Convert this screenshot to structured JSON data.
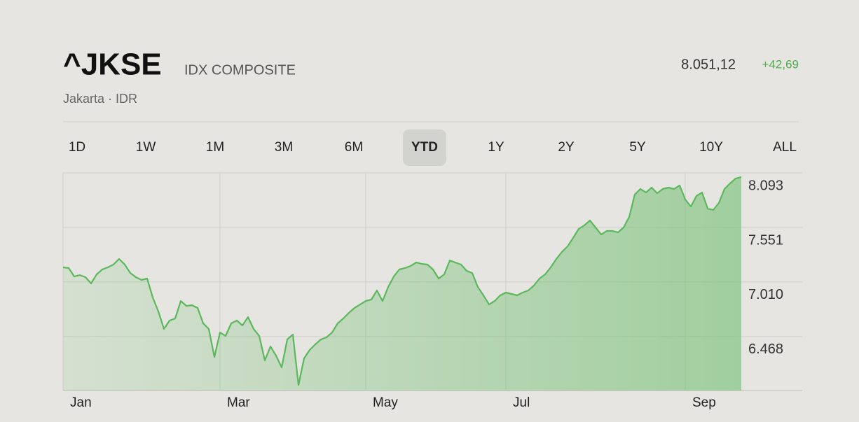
{
  "header": {
    "symbol": "^JKSE",
    "name": "IDX COMPOSITE",
    "exchange": "Jakarta · IDR",
    "price": "8.051,12",
    "change": "+42,69"
  },
  "range_buttons": [
    "1D",
    "1W",
    "1M",
    "3M",
    "6M",
    "YTD",
    "1Y",
    "2Y",
    "5Y",
    "10Y",
    "ALL"
  ],
  "selected_range": 5,
  "chart_data": {
    "type": "line",
    "color": "#5cb85c",
    "grid": true,
    "categories": [
      "Jan",
      null,
      null,
      null,
      null,
      null,
      null,
      null,
      null,
      null,
      null,
      null,
      null,
      null,
      null,
      null,
      null,
      null,
      null,
      null,
      null,
      null,
      null,
      null,
      null,
      null,
      null,
      null,
      "Mar",
      null,
      null,
      null,
      null,
      null,
      null,
      null,
      null,
      null,
      null,
      null,
      null,
      null,
      null,
      null,
      null,
      null,
      null,
      null,
      null,
      null,
      null,
      null,
      null,
      null,
      "May",
      null,
      null,
      null,
      null,
      null,
      null,
      null,
      null,
      null,
      null,
      null,
      null,
      null,
      null,
      null,
      null,
      null,
      null,
      null,
      null,
      null,
      null,
      null,
      null,
      "Jul",
      null,
      null,
      null,
      null,
      null,
      null,
      null,
      null,
      null,
      null,
      null,
      null,
      null,
      null,
      null,
      null,
      null,
      null,
      null,
      null,
      null,
      null,
      null,
      null,
      null,
      null,
      null,
      null,
      null,
      null,
      null,
      "Sep",
      null,
      null,
      null,
      null,
      null,
      null,
      null,
      null,
      null,
      null
    ],
    "values": [
      7155,
      7148,
      7064,
      7078,
      7057,
      6995,
      7085,
      7134,
      7155,
      7183,
      7238,
      7183,
      7099,
      7057,
      7030,
      7044,
      6856,
      6717,
      6543,
      6627,
      6647,
      6821,
      6772,
      6779,
      6752,
      6599,
      6543,
      6265,
      6508,
      6474,
      6599,
      6627,
      6578,
      6661,
      6543,
      6474,
      6230,
      6369,
      6279,
      6161,
      6439,
      6488,
      5987,
      6251,
      6335,
      6390,
      6439,
      6460,
      6508,
      6599,
      6647,
      6703,
      6752,
      6786,
      6821,
      6835,
      6925,
      6821,
      6960,
      7064,
      7134,
      7148,
      7169,
      7203,
      7189,
      7183,
      7134,
      7044,
      7085,
      7224,
      7203,
      7183,
      7120,
      7099,
      6960,
      6877,
      6786,
      6821,
      6877,
      6905,
      6891,
      6877,
      6905,
      6925,
      6974,
      7044,
      7085,
      7155,
      7238,
      7308,
      7363,
      7447,
      7537,
      7572,
      7620,
      7551,
      7481,
      7516,
      7516,
      7502,
      7551,
      7655,
      7878,
      7933,
      7898,
      7947,
      7891,
      7933,
      7947,
      7933,
      7968,
      7829,
      7759,
      7864,
      7898,
      7739,
      7725,
      7794,
      7933,
      7989,
      8037,
      8051
    ],
    "ylim": [
      5932,
      8093
    ],
    "yticks": [
      {
        "value": 6468,
        "label": "6.468"
      },
      {
        "value": 7010,
        "label": "7.010"
      },
      {
        "value": 7551,
        "label": "7.551"
      },
      {
        "value": 8093,
        "label": "8.093"
      }
    ]
  }
}
